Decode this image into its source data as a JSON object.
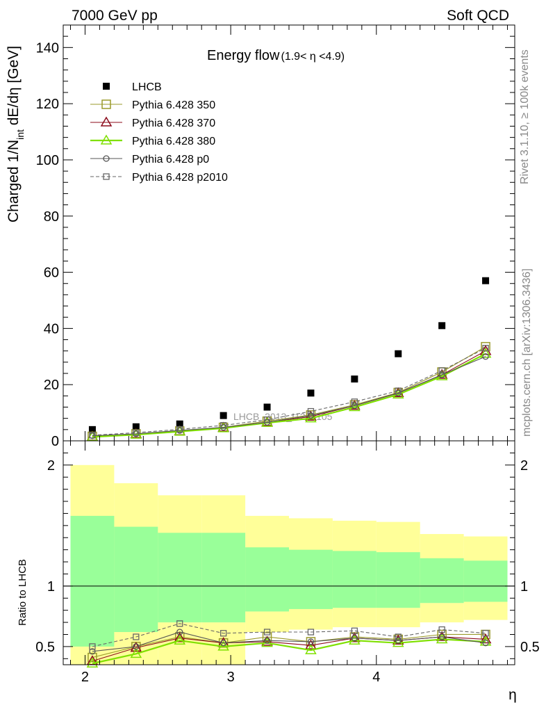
{
  "header": {
    "left": "7000 GeV pp",
    "right": "Soft QCD"
  },
  "side_labels": {
    "rivet": "Rivet 3.1.10, ≥ 100k events",
    "mcplots": "mcplots.cern.ch [arXiv:1306.3436]"
  },
  "watermark": "LHCB_2013_I1208105",
  "chart_data": [
    {
      "type": "scatter",
      "title": "Energy flow",
      "title_range": "(1.9< η <4.9)",
      "xlabel": "η",
      "ylabel_main": "Charged 1/N",
      "ylabel_sub": "int",
      "ylabel_rest": " dE/dη [GeV]",
      "xlim": [
        1.85,
        4.95
      ],
      "ylim": [
        0,
        148
      ],
      "yticks": [
        0,
        20,
        40,
        60,
        80,
        100,
        120,
        140
      ],
      "x": [
        2.05,
        2.35,
        2.65,
        2.95,
        3.25,
        3.55,
        3.85,
        4.15,
        4.45,
        4.75
      ],
      "legend_position": "top-left",
      "series": [
        {
          "name": "LHCB",
          "color": "#000000",
          "marker": "filled-square",
          "line": "none",
          "values": [
            4.0,
            5.0,
            6.0,
            9.0,
            12.0,
            17.0,
            22.0,
            31.0,
            41.0,
            57.0
          ]
        },
        {
          "name": "Pythia 6.428 350",
          "color": "#9a9a2a",
          "marker": "open-square",
          "line": "solid",
          "values": [
            1.6,
            2.5,
            3.5,
            4.8,
            7.0,
            9.2,
            12.8,
            17.2,
            24.5,
            33.5
          ]
        },
        {
          "name": "Pythia 6.428 370",
          "color": "#8b0a1a",
          "marker": "open-triangle",
          "line": "solid",
          "values": [
            1.5,
            2.4,
            3.4,
            4.7,
            6.6,
            8.6,
            12.5,
            17.0,
            23.5,
            32.0
          ]
        },
        {
          "name": "Pythia 6.428 380",
          "color": "#7fe000",
          "marker": "open-triangle",
          "line": "thick",
          "values": [
            1.4,
            2.2,
            3.3,
            4.5,
            6.4,
            8.0,
            12.0,
            16.5,
            23.0,
            31.0
          ]
        },
        {
          "name": "Pythia 6.428 p0",
          "color": "#555555",
          "marker": "open-circle",
          "line": "solid",
          "values": [
            1.8,
            2.5,
            3.7,
            4.8,
            6.6,
            9.0,
            12.5,
            17.0,
            23.5,
            30.0
          ]
        },
        {
          "name": "Pythia 6.428 p2010",
          "color": "#666666",
          "marker": "open-square-small",
          "line": "dashed",
          "values": [
            2.0,
            2.9,
            4.1,
            5.5,
            7.5,
            10.5,
            13.9,
            17.8,
            25.0,
            33.0
          ]
        }
      ]
    },
    {
      "type": "line",
      "ylabel": "Ratio to LHCB",
      "xlabel": "η",
      "xlim": [
        1.85,
        4.95
      ],
      "ylim": [
        0.35,
        2.2
      ],
      "yticks": [
        0.5,
        1,
        2
      ],
      "ytick_labels": [
        "0.5",
        "1",
        "2"
      ],
      "xticks": [
        2,
        3,
        4
      ],
      "xtick_labels": [
        "2",
        "3",
        "4"
      ],
      "reference_line": 1,
      "bands": {
        "edges": [
          1.9,
          2.2,
          2.5,
          2.8,
          3.1,
          3.4,
          3.7,
          4.0,
          4.3,
          4.6,
          4.9
        ],
        "yellow": {
          "color": "#ffff99",
          "lo": [
            0.35,
            0.62,
            0.7,
            0.7,
            0.79,
            0.81,
            0.82,
            0.82,
            0.86,
            0.87
          ],
          "hi": [
            2.0,
            1.85,
            1.75,
            1.75,
            1.58,
            1.56,
            1.54,
            1.53,
            1.43,
            1.41
          ]
        },
        "green": {
          "color": "#99ff99",
          "lo": [
            0.5,
            0.62,
            0.7,
            0.7,
            0.79,
            0.81,
            0.82,
            0.82,
            0.86,
            0.87
          ],
          "hi": [
            1.58,
            1.49,
            1.44,
            1.44,
            1.32,
            1.3,
            1.29,
            1.28,
            1.23,
            1.21
          ]
        },
        "yellow_low": {
          "color": "#ffff99",
          "lo": [
            0.35,
            0.35,
            0.35,
            0.35,
            0.62,
            0.64,
            0.66,
            0.66,
            0.7,
            0.72
          ],
          "hi": [
            0.5,
            0.62,
            0.7,
            0.7,
            0.79,
            0.81,
            0.82,
            0.82,
            0.86,
            0.87
          ]
        }
      },
      "x": [
        2.05,
        2.35,
        2.65,
        2.95,
        3.25,
        3.55,
        3.85,
        4.15,
        4.45,
        4.75
      ],
      "series": [
        {
          "name": "Pythia 6.428 350",
          "values": [
            0.41,
            0.5,
            0.58,
            0.53,
            0.58,
            0.54,
            0.58,
            0.56,
            0.6,
            0.6
          ]
        },
        {
          "name": "Pythia 6.428 370",
          "values": [
            0.38,
            0.49,
            0.57,
            0.53,
            0.54,
            0.51,
            0.57,
            0.55,
            0.58,
            0.56
          ]
        },
        {
          "name": "Pythia 6.428 380",
          "values": [
            0.36,
            0.44,
            0.55,
            0.5,
            0.53,
            0.47,
            0.55,
            0.53,
            0.56,
            0.54
          ]
        },
        {
          "name": "Pythia 6.428 p0",
          "values": [
            0.46,
            0.5,
            0.62,
            0.53,
            0.55,
            0.54,
            0.57,
            0.55,
            0.58,
            0.53
          ]
        },
        {
          "name": "Pythia 6.428 p2010",
          "values": [
            0.5,
            0.58,
            0.69,
            0.61,
            0.62,
            0.62,
            0.63,
            0.58,
            0.64,
            0.61
          ]
        }
      ]
    }
  ]
}
